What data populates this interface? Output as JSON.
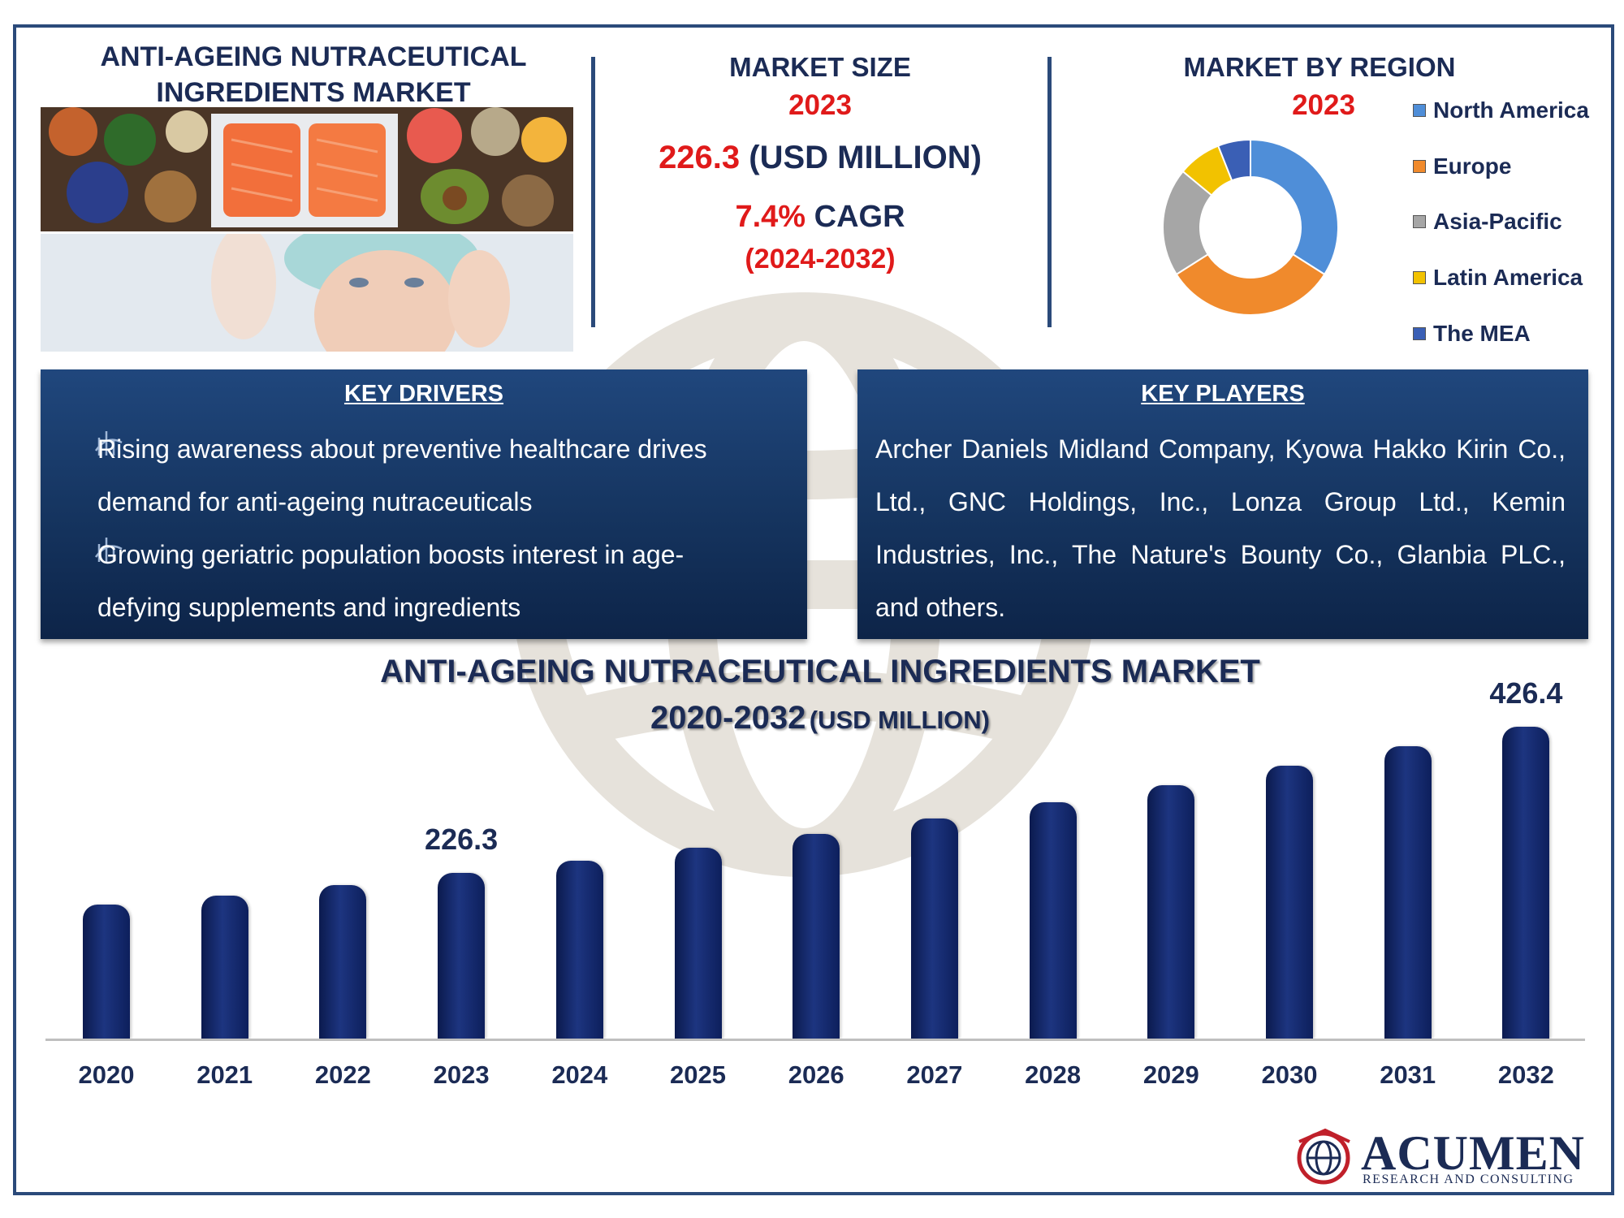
{
  "header": {
    "title_line1": "ANTI-AGEING NUTRACEUTICAL",
    "title_line2": "INGREDIENTS MARKET"
  },
  "market_size": {
    "heading": "MARKET SIZE",
    "year": "2023",
    "value": "226.3",
    "unit": "(USD MILLION)",
    "cagr_value": "7.4%",
    "cagr_label": "CAGR",
    "cagr_period": "(2024-2032)"
  },
  "region": {
    "heading": "MARKET BY REGION",
    "year": "2023"
  },
  "key_drivers": {
    "title": "KEY DRIVERS",
    "items": [
      {
        "line1": "Rising awareness about preventive healthcare drives",
        "line2": "demand for anti-ageing nutraceuticals"
      },
      {
        "line1": "Growing geriatric population boosts interest in age-",
        "line2": "defying supplements and ingredients"
      }
    ]
  },
  "key_players": {
    "title": "KEY PLAYERS",
    "lines": [
      "Archer Daniels Midland Company, Kyowa Hakko Kirin Co.,",
      "Ltd., GNC Holdings, Inc., Lonza Group Ltd., Kemin",
      "Industries, Inc., The Nature's Bounty Co., Glanbia PLC.,",
      "and others."
    ]
  },
  "bar_chart_header": {
    "title": "ANTI-AGEING NUTRACEUTICAL INGREDIENTS MARKET",
    "subtitle_years": "2020-2032",
    "subtitle_unit": "(USD MILLION)"
  },
  "logo": {
    "name": "ACUMEN",
    "tagline": "RESEARCH AND CONSULTING"
  },
  "chart_data": [
    {
      "type": "pie",
      "title": "MARKET BY REGION",
      "categories": [
        "North America",
        "Europe",
        "Asia-Pacific",
        "Latin America",
        "The MEA"
      ],
      "values": [
        34,
        32,
        20,
        8,
        6
      ],
      "colors": [
        "#4f8ed8",
        "#f08a2c",
        "#a6a6a6",
        "#f2c200",
        "#3a5fb5"
      ],
      "style": "donut",
      "legend_position": "right"
    },
    {
      "type": "bar",
      "title": "ANTI-AGEING NUTRACEUTICAL INGREDIENTS MARKET 2020-2032 (USD MILLION)",
      "categories": [
        "2020",
        "2021",
        "2022",
        "2023",
        "2024",
        "2025",
        "2026",
        "2027",
        "2028",
        "2029",
        "2030",
        "2031",
        "2032"
      ],
      "values": [
        183.0,
        196.0,
        210.0,
        226.3,
        243.0,
        261.0,
        280.0,
        301.0,
        323.0,
        347.0,
        373.0,
        400.0,
        426.4
      ],
      "data_labels": {
        "2023": "226.3",
        "2032": "426.4"
      },
      "ylim": [
        0,
        450
      ],
      "bar_color": "#13276a",
      "grid": false
    }
  ]
}
